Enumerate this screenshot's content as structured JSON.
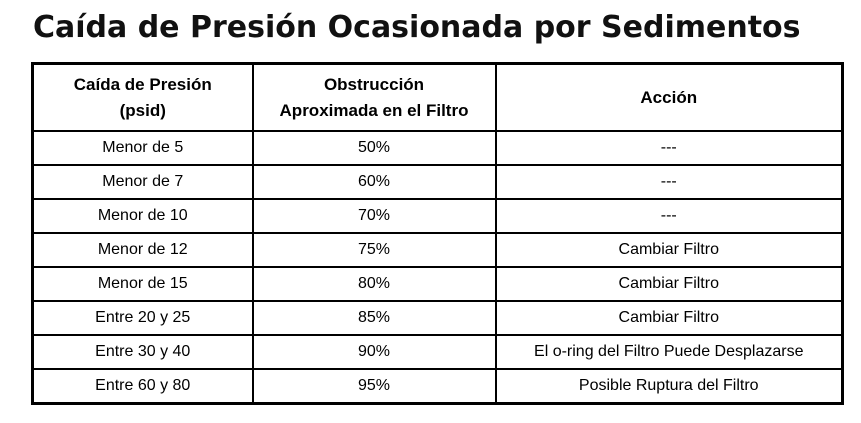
{
  "title": "Caída de Presión Ocasionada por Sedimentos",
  "table": {
    "headers": [
      {
        "line1": "Caída de Presión",
        "line2": "(psid)"
      },
      {
        "line1": "Obstrucción",
        "line2": "Aproximada en el Filtro"
      },
      {
        "line1": "Acción",
        "line2": ""
      }
    ],
    "rows": [
      {
        "pressure": "Menor de 5",
        "obstruction": "50%",
        "action": "---"
      },
      {
        "pressure": "Menor de 7",
        "obstruction": "60%",
        "action": "---"
      },
      {
        "pressure": "Menor de 10",
        "obstruction": "70%",
        "action": "---"
      },
      {
        "pressure": "Menor de 12",
        "obstruction": "75%",
        "action": "Cambiar Filtro"
      },
      {
        "pressure": "Menor de 15",
        "obstruction": "80%",
        "action": "Cambiar Filtro"
      },
      {
        "pressure": "Entre 20 y 25",
        "obstruction": "85%",
        "action": "Cambiar Filtro"
      },
      {
        "pressure": "Entre 30 y 40",
        "obstruction": "90%",
        "action": "El o-ring del Filtro Puede Desplazarse"
      },
      {
        "pressure": "Entre 60 y 80",
        "obstruction": "95%",
        "action": "Posible Ruptura del Filtro"
      }
    ]
  }
}
